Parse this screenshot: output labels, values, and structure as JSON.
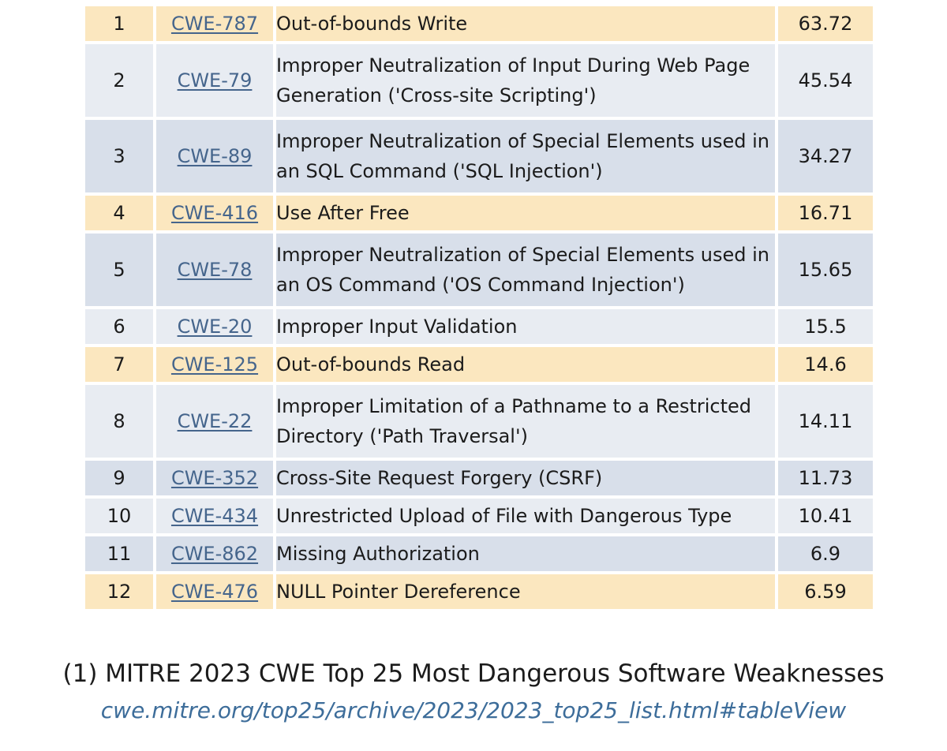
{
  "table": {
    "rows": [
      {
        "rank": "1",
        "id": "CWE-787",
        "name": "Out-of-bounds Write",
        "score": "63.72",
        "color": "#fbe7bf",
        "lines": 1
      },
      {
        "rank": "2",
        "id": "CWE-79",
        "name": "Improper Neutralization of Input During Web Page Generation ('Cross-site Scripting')",
        "score": "45.54",
        "color": "#e8ecf2",
        "lines": 2
      },
      {
        "rank": "3",
        "id": "CWE-89",
        "name": "Improper Neutralization of Special Elements used in an SQL Command ('SQL Injection')",
        "score": "34.27",
        "color": "#d8dfea",
        "lines": 2
      },
      {
        "rank": "4",
        "id": "CWE-416",
        "name": "Use After Free",
        "score": "16.71",
        "color": "#fbe7bf",
        "lines": 1
      },
      {
        "rank": "5",
        "id": "CWE-78",
        "name": "Improper Neutralization of Special Elements used in an OS Command ('OS Command Injection')",
        "score": "15.65",
        "color": "#d8dfea",
        "lines": 2
      },
      {
        "rank": "6",
        "id": "CWE-20",
        "name": "Improper Input Validation",
        "score": "15.5",
        "color": "#e8ecf2",
        "lines": 1
      },
      {
        "rank": "7",
        "id": "CWE-125",
        "name": "Out-of-bounds Read",
        "score": "14.6",
        "color": "#fbe7bf",
        "lines": 1
      },
      {
        "rank": "8",
        "id": "CWE-22",
        "name": "Improper Limitation of a Pathname to a Restricted Directory ('Path Traversal')",
        "score": "14.11",
        "color": "#e8ecf2",
        "lines": 2
      },
      {
        "rank": "9",
        "id": "CWE-352",
        "name": "Cross-Site Request Forgery (CSRF)",
        "score": "11.73",
        "color": "#d8dfea",
        "lines": 1
      },
      {
        "rank": "10",
        "id": "CWE-434",
        "name": "Unrestricted Upload of File with Dangerous Type",
        "score": "10.41",
        "color": "#e8ecf2",
        "lines": 1
      },
      {
        "rank": "11",
        "id": "CWE-862",
        "name": "Missing Authorization",
        "score": "6.9",
        "color": "#d8dfea",
        "lines": 1
      },
      {
        "rank": "12",
        "id": "CWE-476",
        "name": "NULL Pointer Dereference",
        "score": "6.59",
        "color": "#fbe7bf",
        "lines": 1
      }
    ]
  },
  "caption": "(1) MITRE 2023 CWE Top 25 Most Dangerous Software Weaknesses",
  "source": "cwe.mitre.org/top25/archive/2023/2023_top25_list.html#tableView"
}
